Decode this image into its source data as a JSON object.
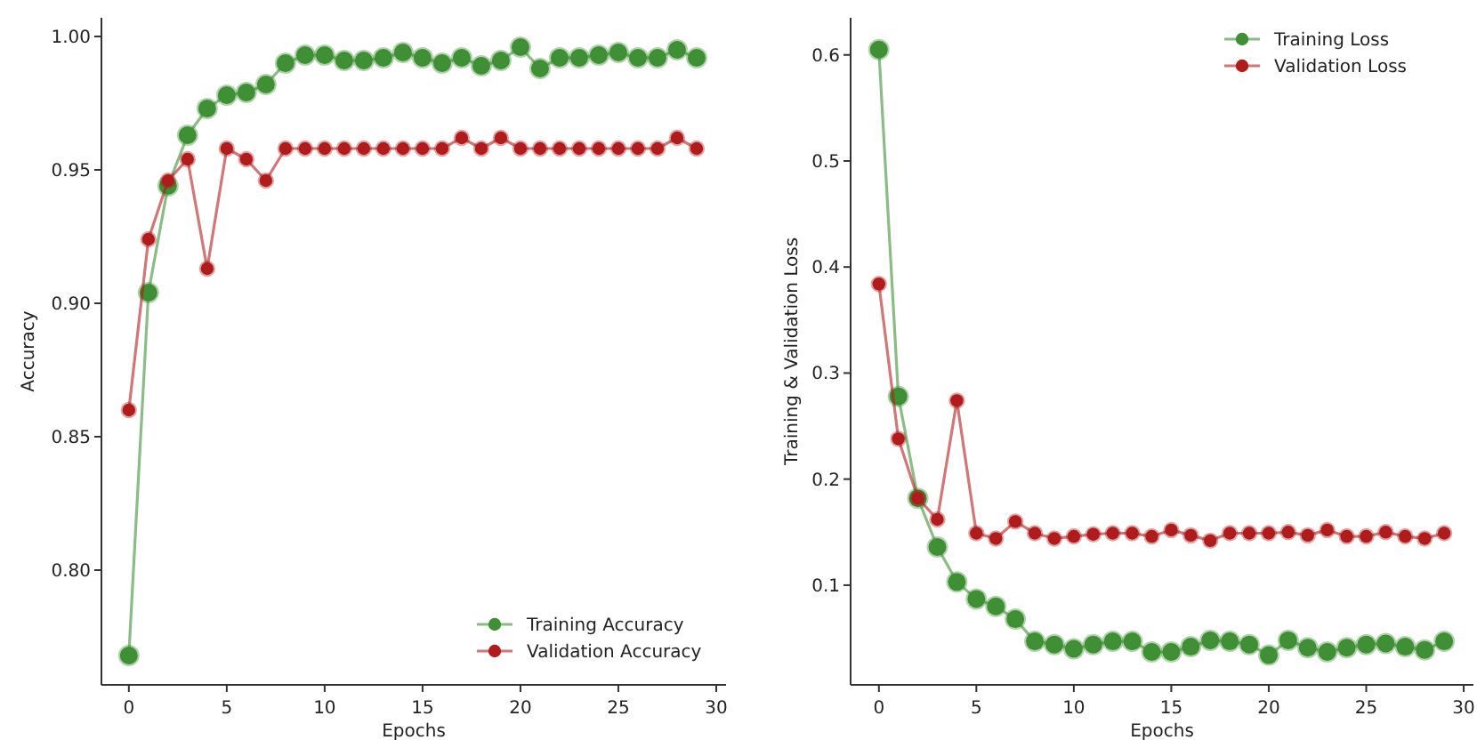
{
  "chart_data": [
    {
      "type": "line",
      "xlabel": "Epochs",
      "ylabel": "Accuracy",
      "marker": "circle",
      "line_style": "solid",
      "legend": "bottom right",
      "grid": false,
      "x": [
        0,
        1,
        2,
        3,
        4,
        5,
        6,
        7,
        8,
        9,
        10,
        11,
        12,
        13,
        14,
        15,
        16,
        17,
        18,
        19,
        20,
        21,
        22,
        23,
        24,
        25,
        26,
        27,
        28,
        29
      ],
      "xlim": [
        -1.4,
        30.5
      ],
      "xticks": [
        0,
        5,
        10,
        15,
        20,
        25,
        30
      ],
      "ylim": [
        0.757,
        1.007
      ],
      "yticks": [
        {
          "value": 0.8,
          "label": "0.80"
        },
        {
          "value": 0.85,
          "label": "0.85"
        },
        {
          "value": 0.9,
          "label": "0.90"
        },
        {
          "value": 0.95,
          "label": "0.95"
        },
        {
          "value": 1.0,
          "label": "1.00"
        }
      ],
      "series": [
        {
          "name": "Training Accuracy",
          "color": "#3f8f35",
          "values": [
            0.768,
            0.904,
            0.944,
            0.963,
            0.973,
            0.978,
            0.979,
            0.982,
            0.99,
            0.993,
            0.993,
            0.991,
            0.991,
            0.992,
            0.994,
            0.992,
            0.99,
            0.992,
            0.989,
            0.991,
            0.996,
            0.988,
            0.992,
            0.992,
            0.993,
            0.994,
            0.992,
            0.992,
            0.995,
            0.992
          ]
        },
        {
          "name": "Validation Accuracy",
          "color": "#b01c1c",
          "values": [
            0.86,
            0.924,
            0.946,
            0.954,
            0.913,
            0.958,
            0.954,
            0.946,
            0.958,
            0.958,
            0.958,
            0.958,
            0.958,
            0.958,
            0.958,
            0.958,
            0.958,
            0.962,
            0.958,
            0.962,
            0.958,
            0.958,
            0.958,
            0.958,
            0.958,
            0.958,
            0.958,
            0.958,
            0.962,
            0.958
          ]
        }
      ]
    },
    {
      "type": "line",
      "xlabel": "Epochs",
      "ylabel": "Training & Validation Loss",
      "marker": "circle",
      "line_style": "solid",
      "legend": "top right",
      "grid": false,
      "x": [
        0,
        1,
        2,
        3,
        4,
        5,
        6,
        7,
        8,
        9,
        10,
        11,
        12,
        13,
        14,
        15,
        16,
        17,
        18,
        19,
        20,
        21,
        22,
        23,
        24,
        25,
        26,
        27,
        28,
        29
      ],
      "xlim": [
        -1.45,
        30.5
      ],
      "xticks": [
        0,
        5,
        10,
        15,
        20,
        25,
        30
      ],
      "ylim": [
        0.006,
        0.635
      ],
      "yticks": [
        0.1,
        0.2,
        0.3,
        0.4,
        0.5,
        0.6
      ],
      "series": [
        {
          "name": "Training Loss",
          "color": "#3f8f35",
          "values": [
            0.605,
            0.278,
            0.182,
            0.136,
            0.103,
            0.087,
            0.08,
            0.068,
            0.047,
            0.044,
            0.04,
            0.044,
            0.047,
            0.047,
            0.037,
            0.037,
            0.042,
            0.048,
            0.047,
            0.044,
            0.034,
            0.048,
            0.041,
            0.037,
            0.041,
            0.044,
            0.045,
            0.042,
            0.039,
            0.047
          ]
        },
        {
          "name": "Validation Loss",
          "color": "#b01c1c",
          "values": [
            0.384,
            0.238,
            0.182,
            0.162,
            0.274,
            0.149,
            0.144,
            0.16,
            0.149,
            0.144,
            0.146,
            0.148,
            0.149,
            0.149,
            0.146,
            0.152,
            0.147,
            0.142,
            0.149,
            0.149,
            0.149,
            0.15,
            0.147,
            0.152,
            0.146,
            0.146,
            0.15,
            0.146,
            0.144,
            0.149
          ]
        }
      ]
    }
  ]
}
